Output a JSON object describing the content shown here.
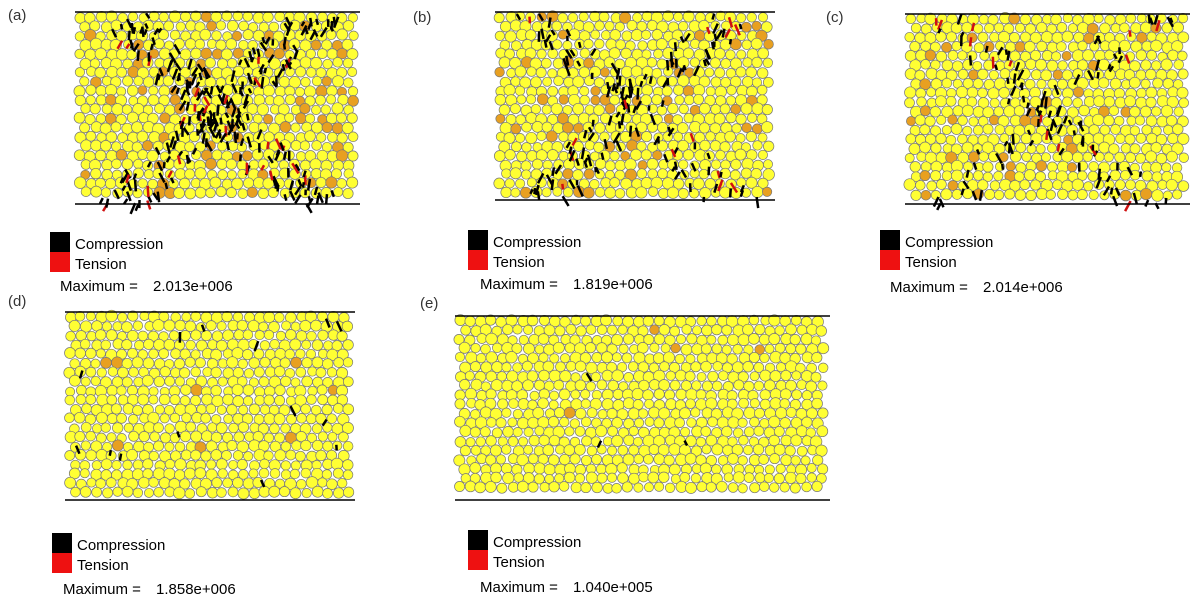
{
  "panels": [
    {
      "label": "(a)",
      "legend": {
        "compression": "Compression",
        "tension": "Tension",
        "maximum_label": "Maximum =",
        "maximum": "2.013e+006"
      }
    },
    {
      "label": "(b)",
      "legend": {
        "compression": "Compression",
        "tension": "Tension",
        "maximum_label": "Maximum =",
        "maximum": "1.819e+006"
      }
    },
    {
      "label": "(c)",
      "legend": {
        "compression": "Compression",
        "tension": "Tension",
        "maximum_label": "Maximum =",
        "maximum": "2.014e+006"
      }
    },
    {
      "label": "(d)",
      "legend": {
        "compression": "Compression",
        "tension": "Tension",
        "maximum_label": "Maximum =",
        "maximum": "1.858e+006"
      }
    },
    {
      "label": "(e)",
      "legend": {
        "compression": "Compression",
        "tension": "Tension",
        "maximum_label": "Maximum =",
        "maximum": "1.040e+005"
      }
    }
  ]
}
